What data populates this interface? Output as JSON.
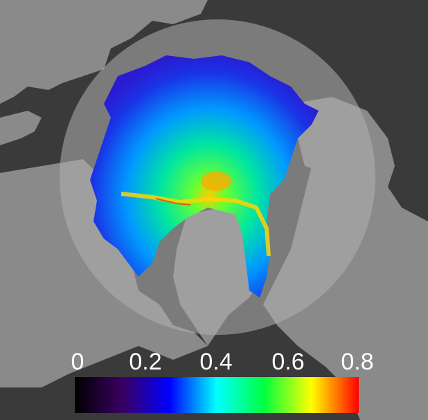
{
  "colors": {
    "background": "#3a3a3a",
    "land": "#8a8a8a",
    "disc": "#a9a9a9",
    "label": "#ffffff"
  },
  "colorbar": {
    "stops": [
      "#000000",
      "#3a0060",
      "#0000ff",
      "#00ffff",
      "#00ff40",
      "#ffff00",
      "#ff0000"
    ],
    "tick_labels": [
      "0",
      "0.2",
      "0.4",
      "0.6",
      "0.8"
    ],
    "min": 0,
    "max": 0.8
  }
}
